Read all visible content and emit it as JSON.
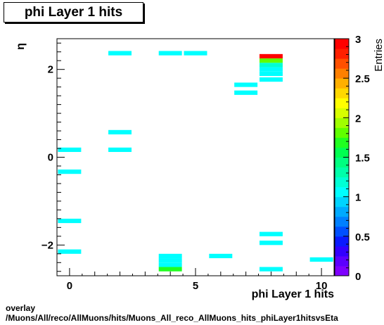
{
  "title": "phi Layer 1 hits",
  "footer": {
    "line1": "overlay",
    "line2": "/Muons/All/reco/AllMuons/hits/Muons_All_reco_AllMuons_hits_phiLayer1hitsvsEta"
  },
  "chart_data": {
    "type": "heatmap",
    "title": "phi Layer 1 hits",
    "xlabel": "phi Layer 1 hits",
    "ylabel": "η",
    "zlabel": "Entries",
    "xlim": [
      -0.5,
      10.5
    ],
    "ylim": [
      -2.7,
      2.7
    ],
    "zlim": [
      0,
      3
    ],
    "x_ticks": [
      0,
      5,
      10
    ],
    "y_ticks": [
      -2,
      0,
      2
    ],
    "z_ticks": [
      0,
      0.5,
      1,
      1.5,
      2,
      2.5,
      3
    ],
    "bin_width_x": 1,
    "bin_height_y": 0.1,
    "cells": [
      {
        "x": 0,
        "y": 0.17,
        "value": 1
      },
      {
        "x": 0,
        "y": -0.33,
        "value": 1
      },
      {
        "x": 0,
        "y": -1.45,
        "value": 1
      },
      {
        "x": 0,
        "y": -2.15,
        "value": 1
      },
      {
        "x": 2,
        "y": 2.37,
        "value": 1
      },
      {
        "x": 2,
        "y": 0.57,
        "value": 1
      },
      {
        "x": 2,
        "y": 0.17,
        "value": 1
      },
      {
        "x": 4,
        "y": 2.37,
        "value": 1
      },
      {
        "x": 5,
        "y": 2.37,
        "value": 1
      },
      {
        "x": 4,
        "y": -2.25,
        "value": 1
      },
      {
        "x": 4,
        "y": -2.35,
        "value": 1
      },
      {
        "x": 4,
        "y": -2.45,
        "value": 1
      },
      {
        "x": 4,
        "y": -2.55,
        "value": 1.7
      },
      {
        "x": 6,
        "y": -2.25,
        "value": 1
      },
      {
        "x": 7,
        "y": 1.65,
        "value": 1
      },
      {
        "x": 7,
        "y": 1.47,
        "value": 1
      },
      {
        "x": 8,
        "y": 2.3,
        "value": 3
      },
      {
        "x": 8,
        "y": 2.2,
        "value": 1.8
      },
      {
        "x": 8,
        "y": 2.1,
        "value": 1.2
      },
      {
        "x": 8,
        "y": 2.0,
        "value": 1
      },
      {
        "x": 8,
        "y": 1.9,
        "value": 1
      },
      {
        "x": 8,
        "y": 1.77,
        "value": 1
      },
      {
        "x": 8,
        "y": -1.75,
        "value": 1
      },
      {
        "x": 8,
        "y": -1.95,
        "value": 1
      },
      {
        "x": 8,
        "y": -2.55,
        "value": 1
      },
      {
        "x": 10,
        "y": -2.33,
        "value": 1
      }
    ]
  }
}
